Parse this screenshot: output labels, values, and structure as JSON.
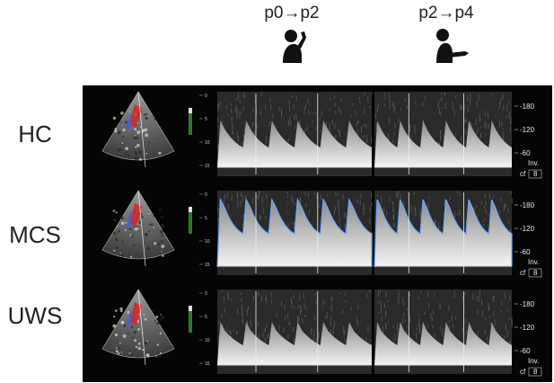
{
  "columns": [
    {
      "label": "p0→p2",
      "icon": "person-hand-to-head-icon"
    },
    {
      "label": "p2→p4",
      "icon": "person-arm-extended-icon"
    }
  ],
  "rows": [
    {
      "label": "HC"
    },
    {
      "label": "MCS"
    },
    {
      "label": "UWS"
    }
  ],
  "velocity_scale": {
    "ticks": [
      "-180",
      "-120",
      "-60"
    ],
    "inv_label": "Inv.",
    "cf_label": "cf",
    "cf_value": "8"
  },
  "depth_scale": [
    "0",
    "5",
    "10",
    "15"
  ],
  "colors": {
    "background": "#ffffff",
    "panel": "#050505",
    "doppler_blue": "#6fa8ff",
    "flow_red": "#e02a2a"
  }
}
